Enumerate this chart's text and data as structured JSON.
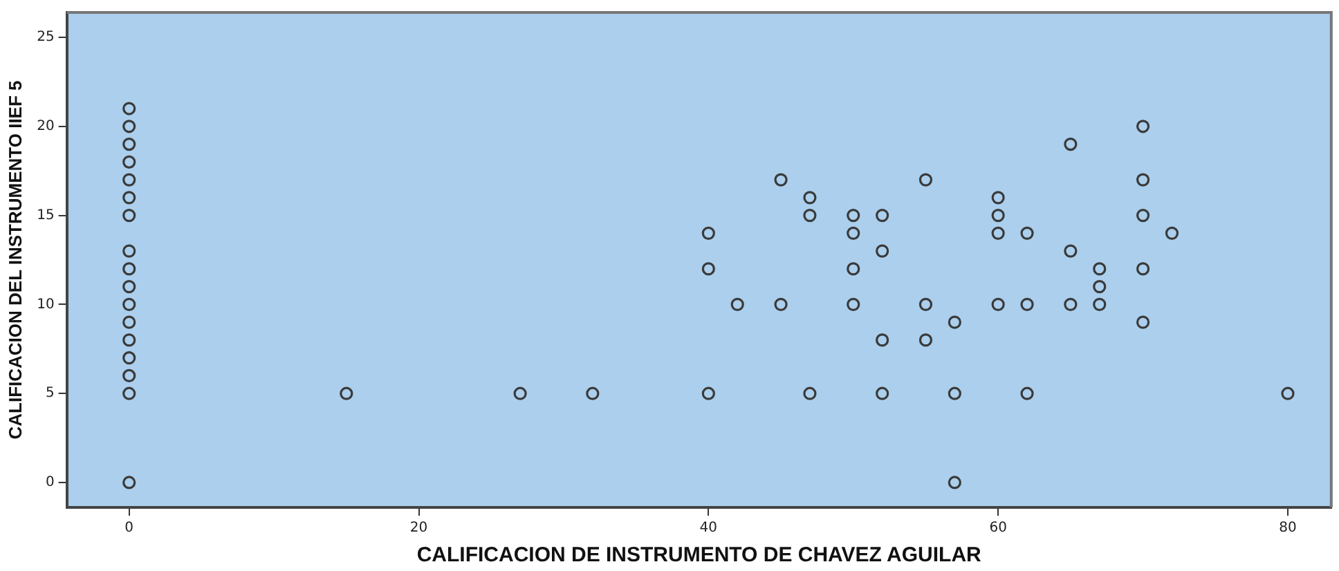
{
  "chart_data": {
    "type": "scatter",
    "xlabel": "CALIFICACION DE INSTRUMENTO DE CHAVEZ AGUILAR",
    "ylabel": "CALIFICACION DEL INSTRUMENTO IIEF 5",
    "series": [
      {
        "color": "#3a3a3a",
        "x": [
          0,
          0,
          0,
          0,
          0,
          0,
          0,
          0,
          0,
          0,
          0,
          0,
          0,
          0,
          0,
          0,
          0,
          15,
          27,
          32,
          70,
          65,
          45,
          55,
          70,
          47,
          60,
          47,
          50,
          52,
          60,
          70,
          40,
          50,
          60,
          62,
          72,
          52,
          65,
          40,
          50,
          67,
          70,
          67,
          42,
          45,
          50,
          55,
          60,
          62,
          65,
          67,
          57,
          70,
          52,
          55,
          40,
          47,
          52,
          57,
          62,
          80,
          57
        ],
        "values": [
          0,
          5,
          6,
          7,
          8,
          9,
          10,
          11,
          12,
          13,
          15,
          16,
          17,
          18,
          19,
          20,
          21,
          5,
          5,
          5,
          20,
          19,
          17,
          17,
          17,
          16,
          16,
          15,
          15,
          15,
          15,
          15,
          14,
          14,
          14,
          14,
          14,
          13,
          13,
          12,
          12,
          12,
          12,
          11,
          10,
          10,
          10,
          10,
          10,
          10,
          10,
          10,
          9,
          9,
          8,
          8,
          5,
          5,
          5,
          5,
          5,
          5,
          0
        ]
      }
    ],
    "marker": "circle",
    "grid": false,
    "legend": false,
    "xlim": [
      -4.3,
      83
    ],
    "xticks": [
      0,
      20,
      40,
      60,
      80
    ],
    "ylim": [
      -1.4,
      26.4
    ],
    "yticks": [
      0,
      5,
      10,
      15,
      20,
      25
    ]
  }
}
